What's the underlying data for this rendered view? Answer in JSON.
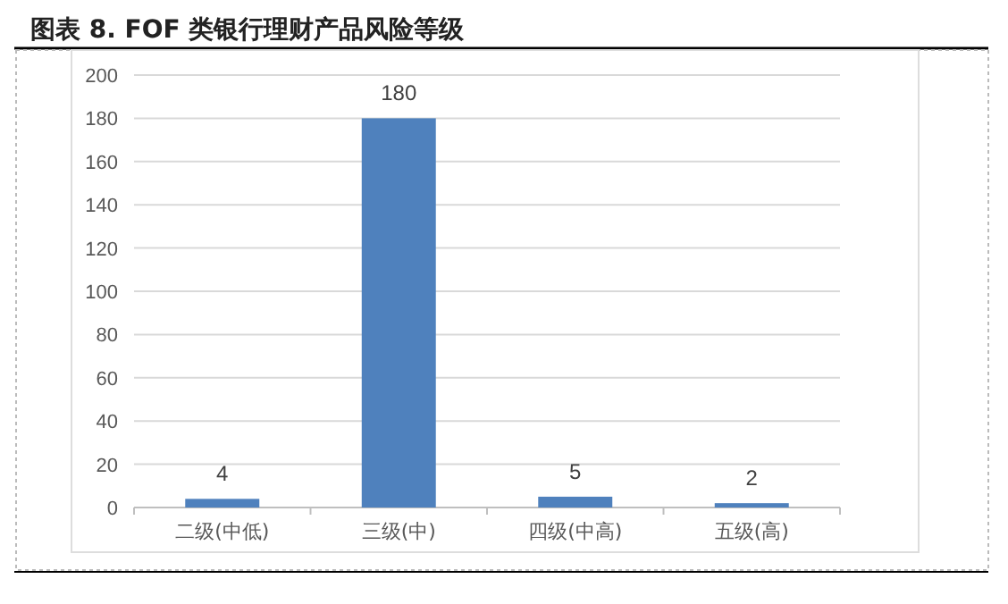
{
  "chart_data": {
    "type": "bar",
    "title": "图表 8. FOF 类银行理财产品风险等级",
    "categories": [
      "二级(中低)",
      "三级(中)",
      "四级(中高)",
      "五级(高)"
    ],
    "values": [
      4,
      180,
      5,
      2
    ],
    "color": "#4f81bd",
    "ylim": [
      0,
      200
    ],
    "yticks": [
      0,
      20,
      40,
      60,
      80,
      100,
      120,
      140,
      160,
      180,
      200
    ],
    "grid": "y",
    "data_labels": true
  }
}
